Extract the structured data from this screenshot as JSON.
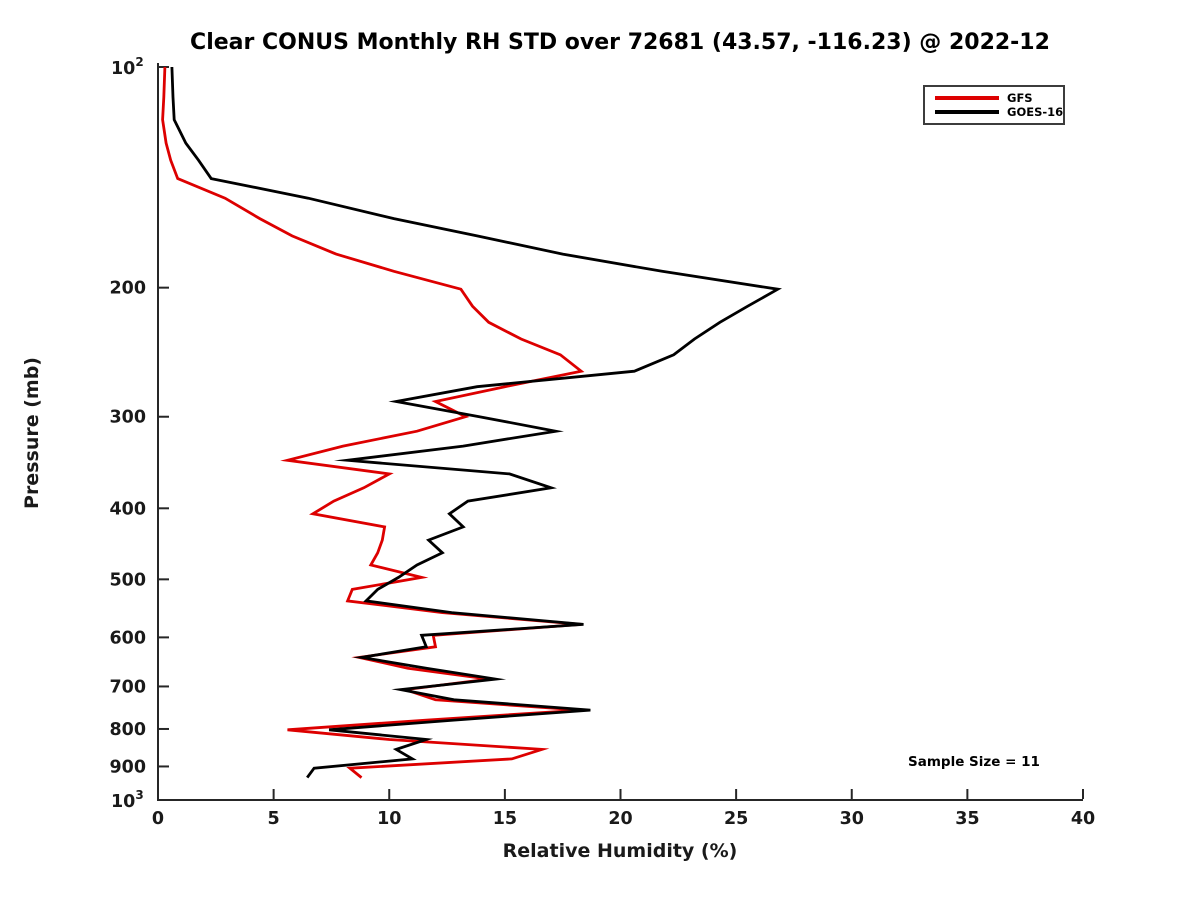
{
  "title": "Clear CONUS Monthly RH STD over 72681 (43.57, -116.23) @ 2022-12",
  "annotation": "Sample Size = 11",
  "legend": {
    "entries": [
      {
        "label": "GFS",
        "color": "#dd0000"
      },
      {
        "label": "GOES-16",
        "color": "#000000"
      }
    ]
  },
  "colors": {
    "axis": "#262626",
    "gfs": "#dd0000",
    "goes": "#000000"
  },
  "chart_data": {
    "type": "line",
    "title": "Clear CONUS Monthly RH STD over 72681 (43.57, -116.23) @ 2022-12",
    "xlabel": "Relative Humidity (%)",
    "ylabel": "Pressure (mb)",
    "xlim": [
      0,
      40
    ],
    "x_ticks": [
      0,
      5,
      10,
      15,
      20,
      25,
      30,
      35,
      40
    ],
    "y_scale": "log",
    "ylim_pressure": [
      100,
      1000
    ],
    "y_ticks": [
      200,
      300,
      400,
      500,
      600,
      700,
      800,
      900
    ],
    "y_end_labels": {
      "top_base": "10",
      "top_exp": "2",
      "bottom_base": "10",
      "bottom_exp": "3"
    },
    "grid": false,
    "legend_position": "upper right",
    "annotation": "Sample Size = 11",
    "pressure_levels": [
      100,
      110,
      118,
      127,
      134,
      142,
      151,
      161,
      170,
      180,
      190,
      201,
      212,
      223,
      235,
      247,
      260,
      273,
      286,
      300,
      314,
      329,
      344,
      359,
      375,
      391,
      407,
      424,
      442,
      460,
      478,
      497,
      516,
      535,
      555,
      576,
      596,
      618,
      639,
      661,
      684,
      707,
      730,
      754,
      778,
      802,
      827,
      853,
      879,
      905,
      932
    ],
    "series": [
      {
        "name": "GFS",
        "color": "#dd0000",
        "values": [
          0.3,
          0.25,
          0.2,
          0.35,
          0.55,
          0.85,
          2.9,
          4.4,
          5.8,
          7.7,
          10.2,
          13.1,
          13.6,
          14.3,
          15.7,
          17.4,
          18.3,
          15.0,
          12.0,
          13.3,
          11.2,
          8.0,
          5.6,
          10.0,
          8.9,
          7.6,
          6.7,
          9.8,
          9.7,
          9.5,
          9.2,
          11.4,
          8.4,
          8.2,
          12.3,
          18.3,
          11.9,
          12.0,
          8.7,
          10.8,
          14.3,
          10.7,
          12.0,
          18.3,
          11.6,
          5.6,
          10.0,
          16.6,
          15.3,
          8.3,
          8.8
        ]
      },
      {
        "name": "GOES-16",
        "color": "#000000",
        "values": [
          0.6,
          0.65,
          0.7,
          1.2,
          1.75,
          2.3,
          6.5,
          10.2,
          13.8,
          17.5,
          21.8,
          26.8,
          25.5,
          24.3,
          23.2,
          22.3,
          20.6,
          13.8,
          10.3,
          13.9,
          17.2,
          13.2,
          8.2,
          15.2,
          17.0,
          13.4,
          12.6,
          13.2,
          11.7,
          12.3,
          11.2,
          10.4,
          9.5,
          9.0,
          12.7,
          18.4,
          11.4,
          11.6,
          8.8,
          11.6,
          14.6,
          10.5,
          12.8,
          18.7,
          12.8,
          7.4,
          11.6,
          10.3,
          11.0,
          6.75,
          6.45
        ]
      }
    ]
  }
}
